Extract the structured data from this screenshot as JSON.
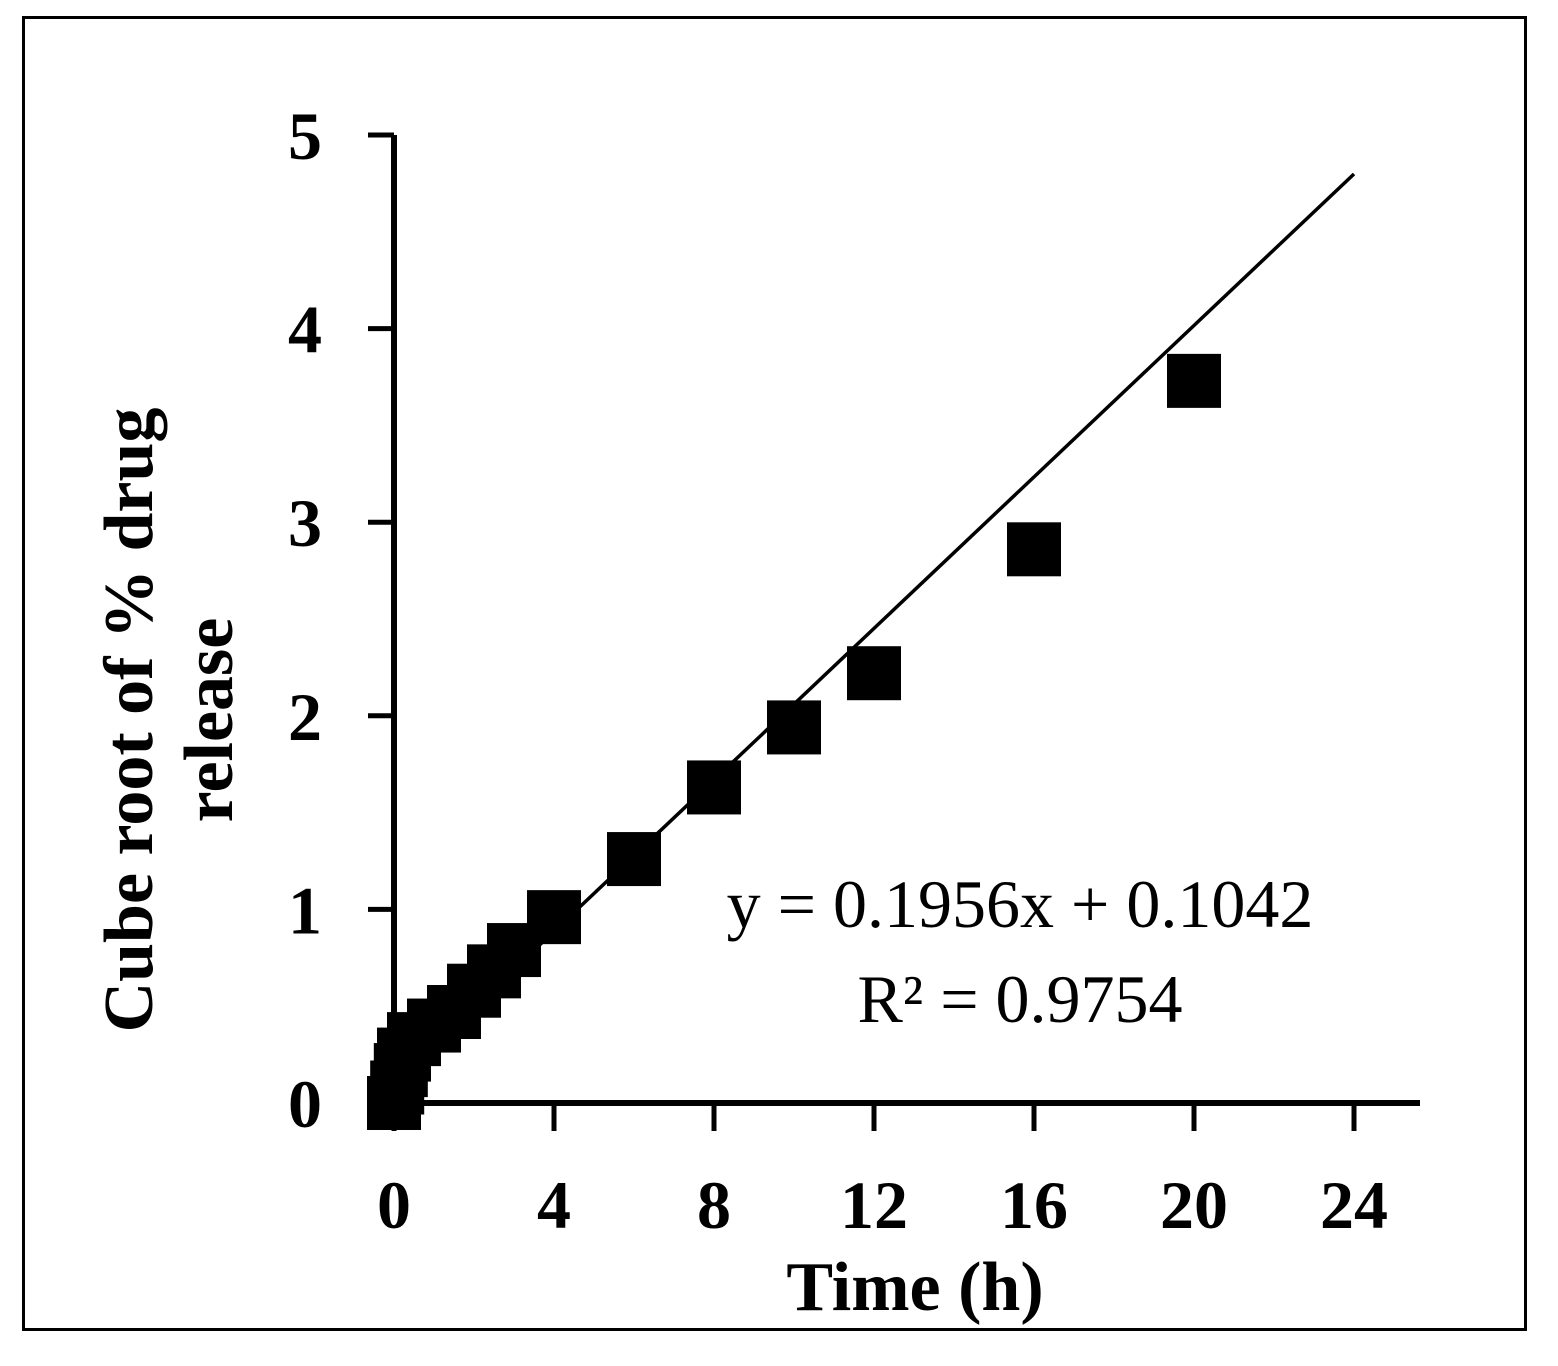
{
  "chart_data": {
    "type": "scatter",
    "xlabel": "Time (h)",
    "ylabel_lines": [
      "Cube root of % drug",
      "release"
    ],
    "xlim": [
      0,
      24
    ],
    "ylim": [
      0,
      5
    ],
    "xticks": [
      0,
      4,
      8,
      12,
      16,
      20,
      24
    ],
    "yticks": [
      0,
      1,
      2,
      3,
      4,
      5
    ],
    "grid": false,
    "legend": "none",
    "series": [
      {
        "marker": "square",
        "color": "#000000",
        "points": [
          {
            "x": 0,
            "y": 0
          },
          {
            "x": 0.08,
            "y": 0.08
          },
          {
            "x": 0.17,
            "y": 0.17
          },
          {
            "x": 0.25,
            "y": 0.25
          },
          {
            "x": 0.5,
            "y": 0.33
          },
          {
            "x": 1,
            "y": 0.4
          },
          {
            "x": 1.5,
            "y": 0.47
          },
          {
            "x": 2,
            "y": 0.58
          },
          {
            "x": 2.5,
            "y": 0.68
          },
          {
            "x": 3,
            "y": 0.79
          },
          {
            "x": 4,
            "y": 0.96
          },
          {
            "x": 6,
            "y": 1.26
          },
          {
            "x": 8,
            "y": 1.63
          },
          {
            "x": 10,
            "y": 1.94
          },
          {
            "x": 12,
            "y": 2.22
          },
          {
            "x": 16,
            "y": 2.86
          },
          {
            "x": 20,
            "y": 3.73
          }
        ]
      }
    ],
    "trendline": {
      "slope": 0.1956,
      "intercept": 0.1042,
      "x_range": [
        0,
        24
      ],
      "color": "#000000"
    },
    "annotations": [
      "y = 0.1956x + 0.1042",
      "R² = 0.9754"
    ]
  }
}
